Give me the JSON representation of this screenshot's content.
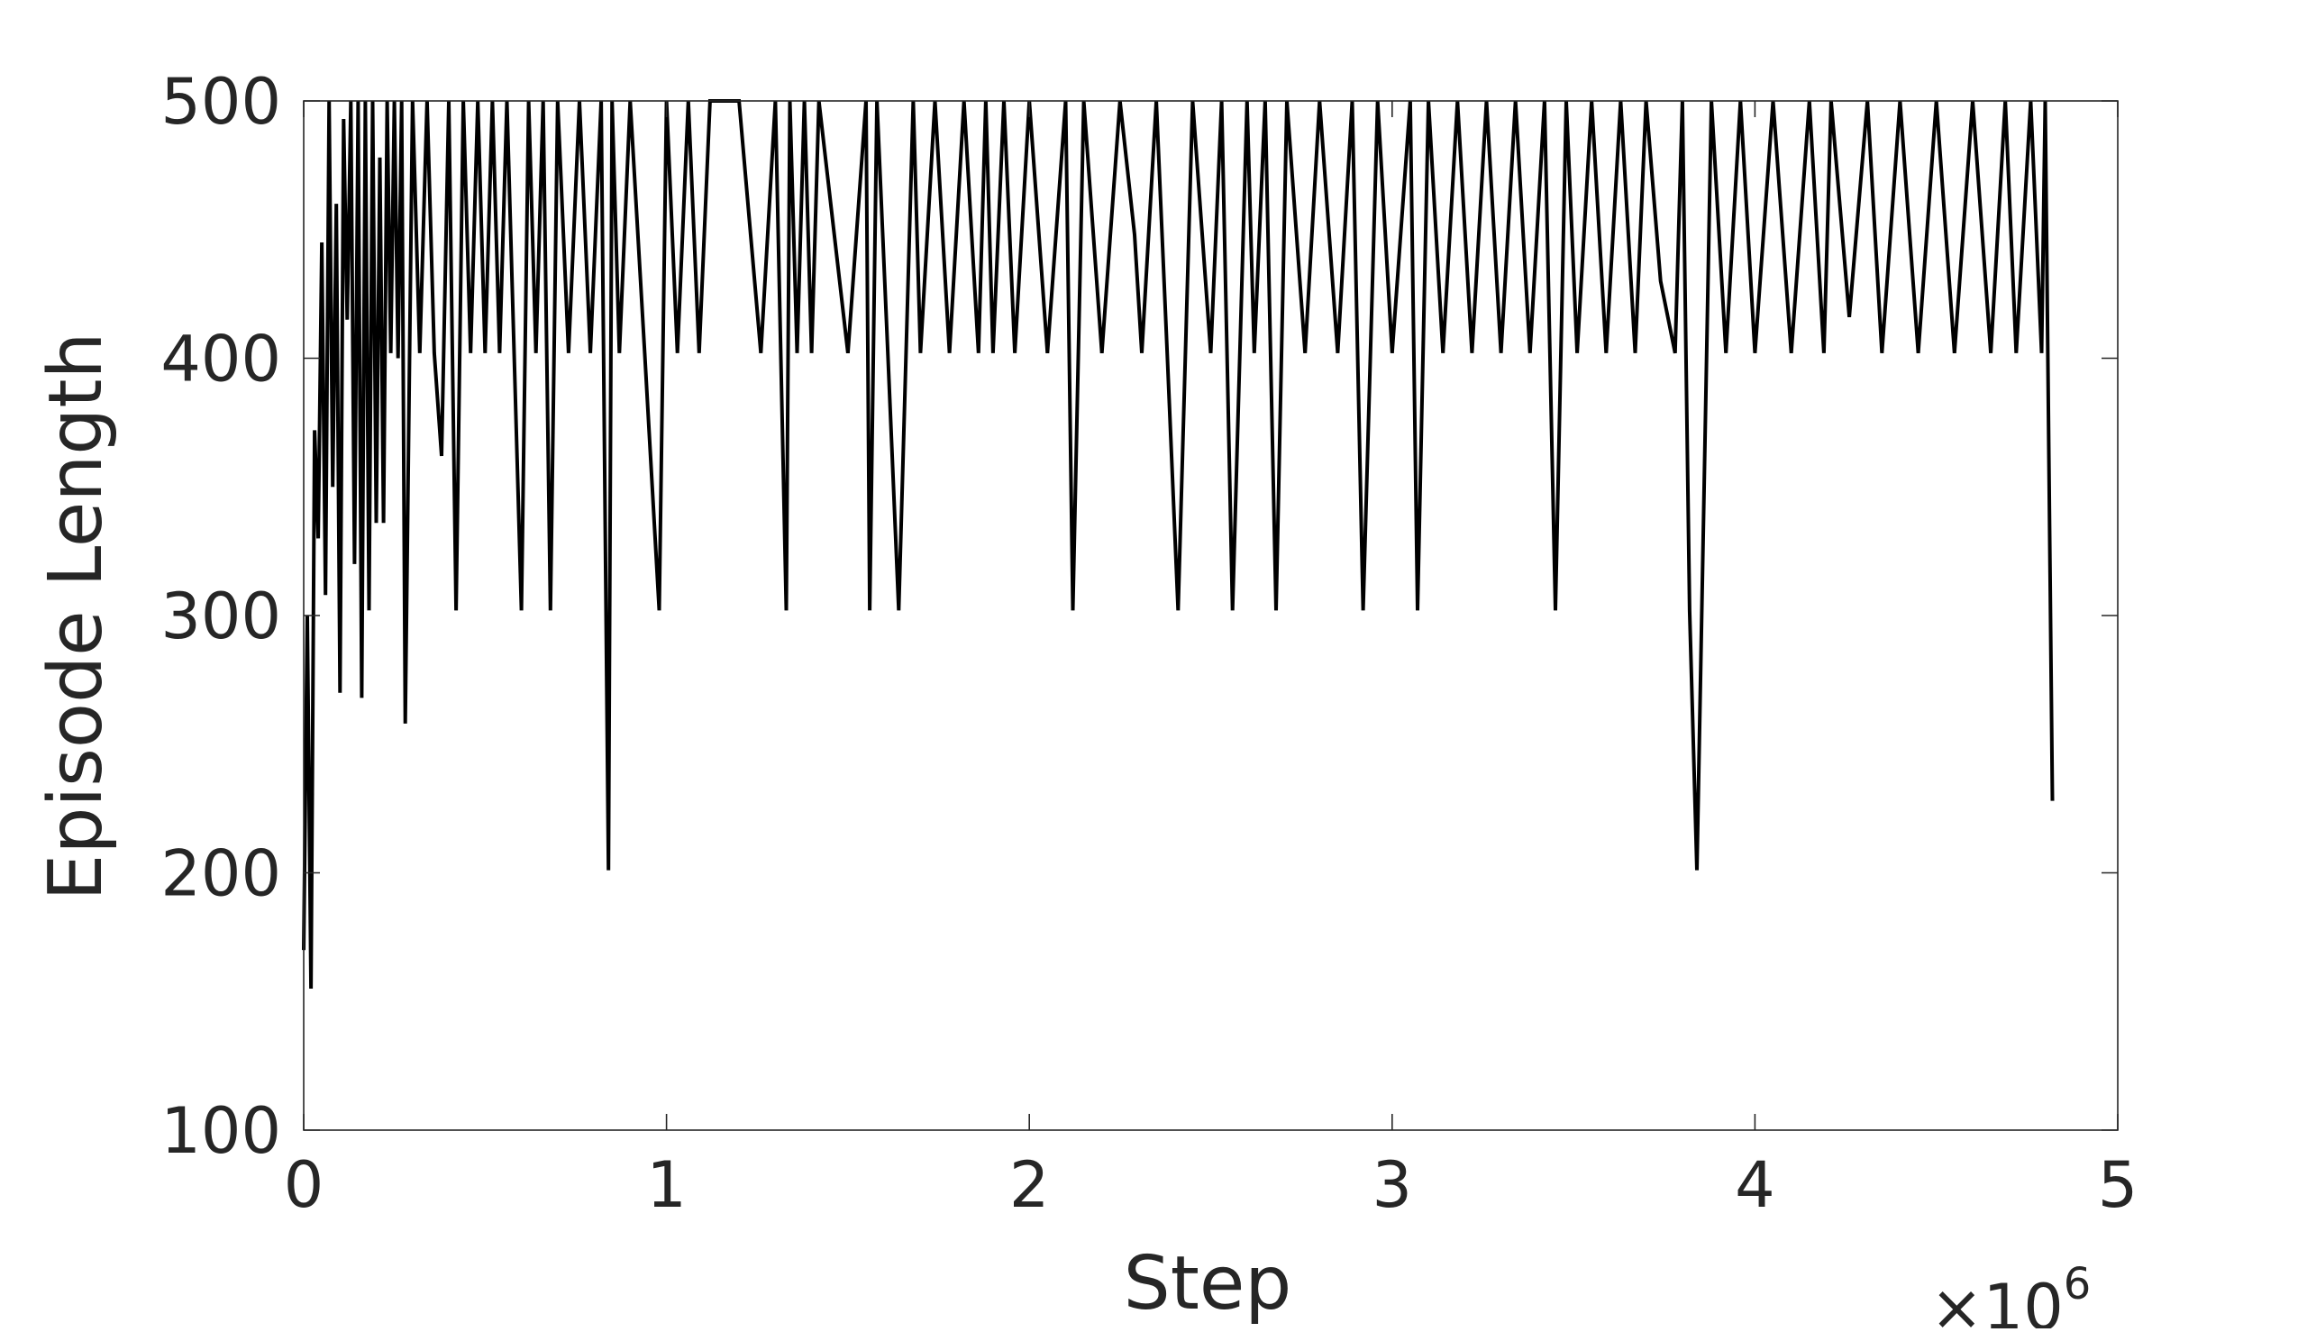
{
  "chart_data": {
    "type": "line",
    "title": "",
    "xlabel": "Step",
    "ylabel": "Episode Length",
    "x_exponent_label": "×10",
    "x_exponent_power": "6",
    "x_scale": 1000000,
    "xlim": [
      0,
      5000000
    ],
    "ylim": [
      100,
      500
    ],
    "xticks": [
      0,
      1000000,
      2000000,
      3000000,
      4000000,
      5000000
    ],
    "xtick_labels": [
      "0",
      "1",
      "2",
      "3",
      "4",
      "5"
    ],
    "yticks": [
      100,
      200,
      300,
      400,
      500
    ],
    "ytick_labels": [
      "100",
      "200",
      "300",
      "400",
      "500"
    ],
    "grid": false,
    "line_color": "#000000",
    "series": [
      {
        "x": [
          0,
          10000,
          20000,
          30000,
          40000,
          50000,
          60000,
          70000,
          80000,
          90000,
          100000,
          110000,
          120000,
          130000,
          140000,
          150000,
          160000,
          170000,
          180000,
          190000,
          200000,
          210000,
          220000,
          230000,
          240000,
          250000,
          260000,
          270000,
          280000,
          300000,
          320000,
          340000,
          360000,
          380000,
          400000,
          420000,
          440000,
          460000,
          480000,
          500000,
          520000,
          540000,
          560000,
          580000,
          600000,
          620000,
          640000,
          660000,
          680000,
          700000,
          730000,
          760000,
          790000,
          820000,
          840000,
          850000,
          870000,
          900000,
          940000,
          980000,
          1000000,
          1030000,
          1060000,
          1090000,
          1120000,
          1200000,
          1260000,
          1300000,
          1330000,
          1340000,
          1360000,
          1380000,
          1400000,
          1420000,
          1500000,
          1550000,
          1560000,
          1580000,
          1610000,
          1640000,
          1680000,
          1700000,
          1740000,
          1780000,
          1820000,
          1860000,
          1880000,
          1900000,
          1930000,
          1960000,
          2000000,
          2050000,
          2100000,
          2120000,
          2150000,
          2200000,
          2250000,
          2290000,
          2310000,
          2350000,
          2380000,
          2410000,
          2450000,
          2500000,
          2530000,
          2560000,
          2600000,
          2620000,
          2650000,
          2680000,
          2710000,
          2760000,
          2800000,
          2850000,
          2890000,
          2920000,
          2960000,
          3000000,
          3050000,
          3070000,
          3100000,
          3140000,
          3180000,
          3220000,
          3260000,
          3300000,
          3340000,
          3380000,
          3420000,
          3450000,
          3480000,
          3510000,
          3550000,
          3590000,
          3630000,
          3670000,
          3700000,
          3740000,
          3780000,
          3800000,
          3820000,
          3840000,
          3880000,
          3920000,
          3960000,
          4000000,
          4050000,
          4100000,
          4150000,
          4190000,
          4210000,
          4260000,
          4310000,
          4350000,
          4400000,
          4450000,
          4500000,
          4550000,
          4600000,
          4650000,
          4690000,
          4720000,
          4760000,
          4790000,
          4800000,
          4820000
        ],
        "values": [
          170,
          300,
          155,
          372,
          330,
          445,
          308,
          500,
          350,
          460,
          270,
          493,
          415,
          500,
          320,
          500,
          268,
          500,
          302,
          500,
          336,
          478,
          336,
          500,
          402,
          500,
          400,
          500,
          258,
          500,
          402,
          500,
          402,
          362,
          500,
          302,
          500,
          402,
          500,
          402,
          500,
          402,
          500,
          402,
          302,
          500,
          402,
          500,
          302,
          500,
          402,
          500,
          402,
          500,
          201,
          500,
          402,
          500,
          402,
          302,
          500,
          402,
          500,
          402,
          500,
          500,
          402,
          500,
          302,
          500,
          402,
          500,
          402,
          500,
          402,
          500,
          302,
          500,
          402,
          302,
          500,
          402,
          500,
          402,
          500,
          402,
          500,
          402,
          500,
          402,
          500,
          402,
          500,
          302,
          500,
          402,
          500,
          448,
          402,
          500,
          402,
          302,
          500,
          402,
          500,
          302,
          500,
          402,
          500,
          302,
          500,
          402,
          500,
          402,
          500,
          302,
          500,
          402,
          500,
          302,
          500,
          402,
          500,
          402,
          500,
          402,
          500,
          402,
          500,
          302,
          500,
          402,
          500,
          402,
          500,
          402,
          500,
          430,
          402,
          500,
          302,
          201,
          500,
          402,
          500,
          402,
          500,
          402,
          500,
          402,
          500,
          416,
          500,
          402,
          500,
          402,
          500,
          402,
          500,
          402,
          500,
          402,
          500,
          402,
          500,
          228
        ]
      }
    ]
  }
}
